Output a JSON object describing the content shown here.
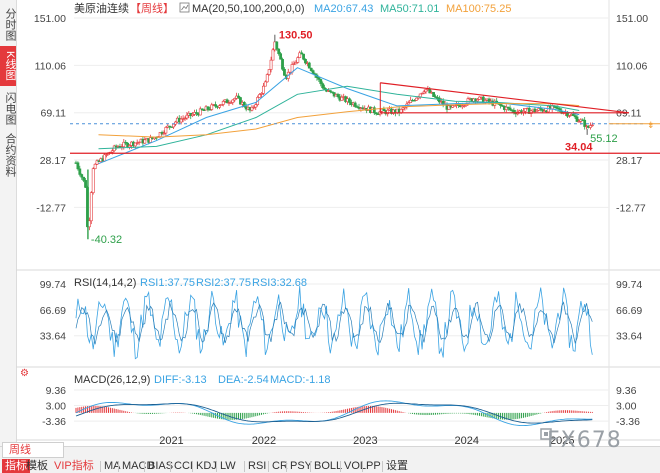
{
  "sidebar": {
    "tabs": [
      {
        "label": "分时图",
        "active": false
      },
      {
        "label": "K线图",
        "active": true
      },
      {
        "label": "闪电图",
        "active": false
      },
      {
        "label": "合约资料",
        "active": false
      }
    ]
  },
  "header": {
    "instrument": "美原油连续",
    "period_tag": "【周线】",
    "ma_label": "MA(20,50,100,200,0,0)",
    "ma_values": [
      {
        "label": "MA20:67.43",
        "color": "#3aa3e3"
      },
      {
        "label": "MA50:71.01",
        "color": "#2fb39a"
      },
      {
        "label": "MA100:75.25",
        "color": "#f2a13b"
      }
    ]
  },
  "price_panel": {
    "y_ticks": [
      "151.00",
      "110.06",
      "69.11",
      "28.17",
      "-12.77"
    ],
    "high_label": "130.50",
    "low_label": "-40.32",
    "last_low_label": "55.12",
    "support_label": "34.04",
    "colors": {
      "up": "#e4393c",
      "down": "#2ea04a",
      "support": "#e01f26",
      "triangle": "#e01f26",
      "current": "#4a90d9"
    }
  },
  "rsi_panel": {
    "title": "RSI(14,14,2)",
    "values": [
      {
        "label": "RSI1:37.75",
        "color": "#3aa3e3"
      },
      {
        "label": "RSI2:37.75",
        "color": "#3aa3e3"
      },
      {
        "label": "RSI3:32.68",
        "color": "#3aa3e3"
      }
    ],
    "y_ticks": [
      "99.74",
      "66.69",
      "33.64"
    ]
  },
  "macd_panel": {
    "title": "MACD(26,12,9)",
    "values": [
      {
        "label": "DIFF:-3.13",
        "color": "#3aa3e3"
      },
      {
        "label": "DEA:-2.54",
        "color": "#3aa3e3"
      },
      {
        "label": "MACD:-1.18",
        "color": "#3aa3e3"
      }
    ],
    "y_ticks": [
      "9.36",
      "3.00",
      "-3.36"
    ]
  },
  "x_axis": {
    "labels": [
      "2021",
      "2022",
      "2023",
      "2024",
      "2025"
    ]
  },
  "bottom_toolbar": {
    "period_button": "周线",
    "items": [
      "指标",
      "模板",
      "VIP指标",
      "MA",
      "MACD",
      "BIAS",
      "CCI",
      "KDJ",
      "LW",
      "RSI",
      "CR",
      "PSY",
      "BOLL",
      "VOL",
      "PP",
      "设置"
    ],
    "selected": "指标",
    "vip": "VIP指标"
  },
  "watermark": "FX678",
  "chart_data": [
    {
      "type": "line",
      "title": "美原油连续【周线】",
      "x_range": [
        "2020-03",
        "2025-05"
      ],
      "ylim": [
        -12.77,
        151.0
      ],
      "series": [
        {
          "name": "MA20",
          "x": [
            "2020-06",
            "2021-01",
            "2021-07",
            "2022-01",
            "2022-06",
            "2022-12",
            "2023-06",
            "2024-01",
            "2024-06",
            "2025-01",
            "2025-04"
          ],
          "values": [
            25,
            45,
            65,
            78,
            108,
            90,
            75,
            77,
            78,
            72,
            67.43
          ]
        },
        {
          "name": "MA50",
          "x": [
            "2020-06",
            "2021-01",
            "2021-07",
            "2022-01",
            "2022-06",
            "2022-12",
            "2023-06",
            "2024-01",
            "2024-06",
            "2025-01",
            "2025-04"
          ],
          "values": [
            38,
            40,
            50,
            65,
            85,
            92,
            85,
            79,
            78,
            75,
            71.01
          ]
        },
        {
          "name": "MA100",
          "x": [
            "2020-06",
            "2021-01",
            "2021-07",
            "2022-01",
            "2022-06",
            "2022-12",
            "2023-06",
            "2024-01",
            "2024-06",
            "2025-01",
            "2025-04"
          ],
          "values": [
            50,
            48,
            50,
            55,
            65,
            70,
            74,
            76,
            77,
            77,
            75.25
          ]
        }
      ],
      "annotations": [
        {
          "label": "130.50",
          "x": "2022-03",
          "y": 130.5
        },
        {
          "label": "-40.32",
          "x": "2020-04",
          "y": -40.32
        },
        {
          "label": "55.12",
          "x": "2025-04",
          "y": 55.12
        },
        {
          "label": "34.04",
          "y": 34.04,
          "kind": "horizontal-line"
        }
      ],
      "triangle": {
        "upper": [
          [
            "2023-04",
            95.0
          ],
          [
            "2025-10",
            69.0
          ]
        ],
        "lower": [
          [
            "2023-04",
            69.0
          ],
          [
            "2025-10",
            69.0
          ]
        ]
      }
    },
    {
      "type": "line",
      "title": "RSI(14,14,2)",
      "ylim": [
        0,
        99.74
      ],
      "series": [
        {
          "name": "RSI1",
          "last": 37.75
        },
        {
          "name": "RSI2",
          "last": 37.75
        },
        {
          "name": "RSI3",
          "last": 32.68
        }
      ]
    },
    {
      "type": "bar",
      "title": "MACD(26,12,9)",
      "ylim": [
        -3.36,
        9.36
      ],
      "series": [
        {
          "name": "DIFF",
          "last": -3.13
        },
        {
          "name": "DEA",
          "last": -2.54
        },
        {
          "name": "MACD",
          "last": -1.18
        }
      ]
    }
  ]
}
